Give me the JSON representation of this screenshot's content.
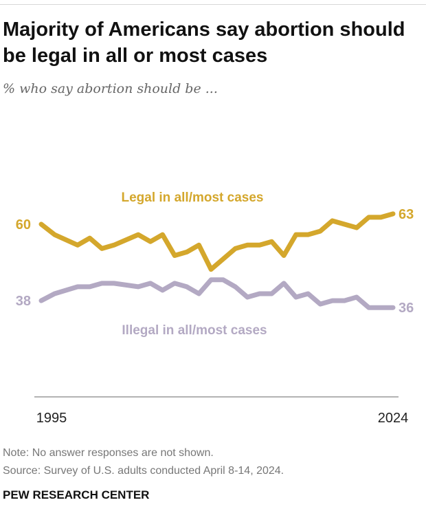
{
  "title": "Majority of Americans say abortion should be legal in all or most cases",
  "subtitle": "% who say abortion should be ...",
  "note": "Note: No answer responses are not shown.",
  "source": "Source: Survey of U.S. adults conducted April 8-14, 2024.",
  "brand": "PEW RESEARCH CENTER",
  "chart_data": {
    "type": "line",
    "xlim": [
      1995,
      2024
    ],
    "ylim": [
      36,
      63
    ],
    "x_tick_labels": [
      "1995",
      "2024"
    ],
    "series": [
      {
        "name": "Legal in all/most cases",
        "color": "#D4A72C",
        "start_label": "60",
        "end_label": "63",
        "x": [
          1995,
          1996.1,
          1998,
          1999,
          2000,
          2001,
          2003,
          2004,
          2005,
          2006,
          2007,
          2008,
          2009,
          2011,
          2012,
          2013,
          2014,
          2015,
          2016,
          2017,
          2018,
          2019,
          2021,
          2022,
          2023,
          2024
        ],
        "values": [
          60,
          57,
          54,
          56,
          53,
          54,
          57,
          55,
          57,
          51,
          52,
          54,
          47,
          53,
          54,
          54,
          55,
          51,
          57,
          57,
          58,
          61,
          59,
          62,
          62,
          63
        ]
      },
      {
        "name": "Illegal in all/most cases",
        "color": "#B3A9C3",
        "start_label": "38",
        "end_label": "36",
        "x": [
          1995,
          1996.1,
          1998,
          1999,
          2000,
          2001,
          2003,
          2004,
          2005,
          2006,
          2007,
          2008,
          2009,
          2010,
          2011,
          2012,
          2013,
          2014,
          2015,
          2016,
          2017,
          2018,
          2019,
          2020,
          2021,
          2022,
          2023,
          2024
        ],
        "values": [
          38,
          40,
          42,
          42,
          43,
          43,
          42,
          43,
          41,
          43,
          42,
          40,
          44,
          44,
          42,
          39,
          40,
          40,
          43,
          39,
          40,
          37,
          38,
          38,
          39,
          36,
          36,
          36
        ]
      }
    ]
  }
}
